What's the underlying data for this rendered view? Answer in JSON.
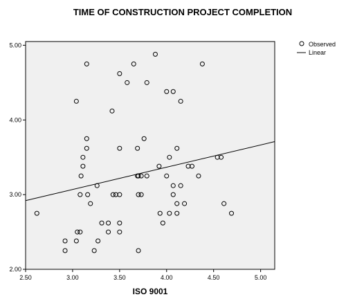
{
  "chart_data": {
    "type": "scatter",
    "title": "TIME OF CONSTRUCTION PROJECT COMPLETION",
    "xlabel": "ISO 9001",
    "ylabel": "",
    "xlim": [
      2.5,
      5.15
    ],
    "ylim": [
      2.0,
      5.05
    ],
    "x_ticks": [
      2.5,
      3.0,
      3.5,
      4.0,
      4.5,
      5.0
    ],
    "x_tick_labels": [
      "2.50",
      "3.00",
      "3.50",
      "4.00",
      "4.50",
      "5.00"
    ],
    "y_ticks": [
      2.0,
      3.0,
      4.0,
      5.0
    ],
    "y_tick_labels": [
      "2.00",
      "3.00",
      "4.00",
      "5.00"
    ],
    "grid": false,
    "legend_position": "top-right",
    "legend": [
      {
        "label": "Observed",
        "symbol": "circle"
      },
      {
        "label": "Linear",
        "symbol": "line"
      }
    ],
    "series": [
      {
        "name": "Observed",
        "kind": "points",
        "x": [
          2.62,
          2.92,
          2.92,
          3.04,
          3.04,
          3.05,
          3.08,
          3.08,
          3.09,
          3.11,
          3.11,
          3.15,
          3.15,
          3.15,
          3.16,
          3.19,
          3.23,
          3.26,
          3.27,
          3.31,
          3.38,
          3.38,
          3.42,
          3.43,
          3.46,
          3.5,
          3.5,
          3.5,
          3.5,
          3.5,
          3.58,
          3.65,
          3.69,
          3.69,
          3.7,
          3.7,
          3.7,
          3.73,
          3.73,
          3.76,
          3.79,
          3.79,
          3.88,
          3.92,
          3.93,
          3.96,
          4.0,
          4.0,
          4.03,
          4.03,
          4.07,
          4.07,
          4.07,
          4.11,
          4.11,
          4.11,
          4.15,
          4.15,
          4.19,
          4.23,
          4.27,
          4.34,
          4.38,
          4.54,
          4.58,
          4.61,
          4.69
        ],
        "y": [
          2.75,
          2.25,
          2.38,
          4.25,
          2.38,
          2.5,
          2.5,
          3.0,
          3.25,
          3.38,
          3.5,
          4.75,
          3.62,
          3.75,
          3.0,
          2.88,
          2.25,
          3.12,
          2.38,
          2.62,
          2.62,
          2.5,
          4.12,
          3.0,
          3.0,
          4.62,
          3.62,
          2.5,
          2.62,
          3.0,
          4.5,
          4.75,
          3.62,
          3.25,
          3.0,
          2.25,
          3.25,
          3.25,
          3.0,
          3.75,
          4.5,
          3.25,
          4.88,
          3.38,
          2.75,
          2.62,
          4.38,
          3.25,
          3.5,
          2.75,
          4.38,
          3.0,
          3.12,
          3.62,
          2.88,
          2.75,
          4.25,
          3.12,
          2.88,
          3.38,
          3.38,
          3.25,
          4.75,
          3.5,
          3.5,
          2.88,
          2.75
        ]
      },
      {
        "name": "Linear",
        "kind": "line",
        "x": [
          2.5,
          5.15
        ],
        "y": [
          2.92,
          3.71
        ]
      }
    ]
  }
}
